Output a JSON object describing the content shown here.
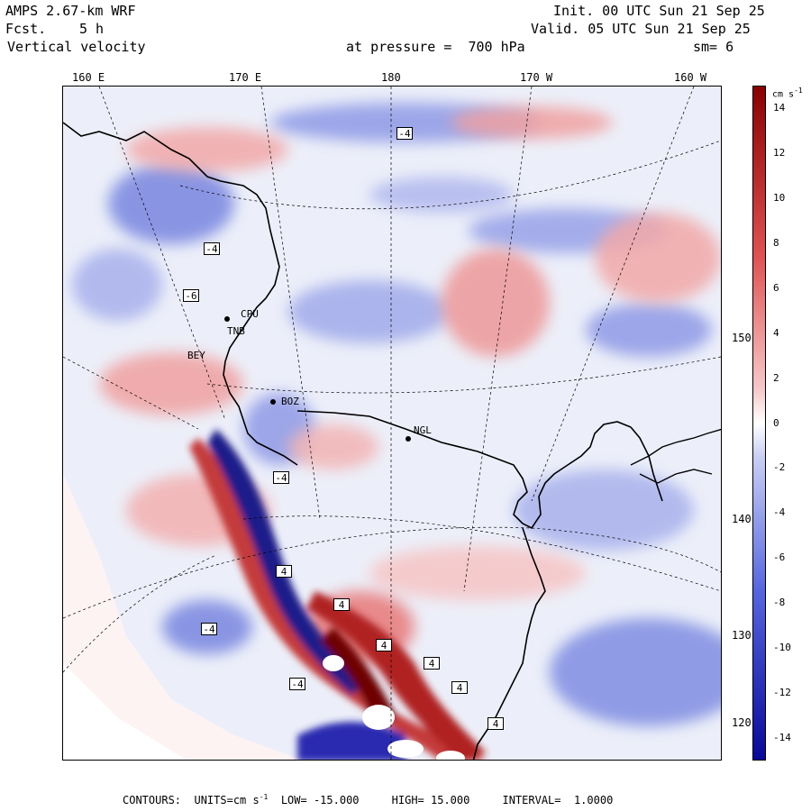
{
  "header": {
    "model": "AMPS 2.67-km WRF",
    "fcst_label": "Fcst.",
    "fcst_value": "5 h",
    "field": "Vertical velocity",
    "level_text": "at pressure =  700 hPa",
    "init": "Init. 00 UTC Sun 21 Sep 25",
    "valid": "Valid. 05 UTC Sun 21 Sep 25",
    "smoothing": "sm= 6"
  },
  "longitude_labels": [
    "160 E",
    "170 E",
    "180",
    "170 W",
    "160 W"
  ],
  "latitude_labels": [
    "150 W",
    "140 W",
    "130 W",
    "120 W"
  ],
  "colorbar": {
    "unit": "cm s",
    "unit_exp": "-1",
    "tick_labels": [
      "14",
      "12",
      "10",
      "8",
      "6",
      "4",
      "2",
      "0",
      "-2",
      "-4",
      "-6",
      "-8",
      "-10",
      "-12",
      "-14"
    ],
    "range": [
      -15,
      15
    ],
    "interval": 1,
    "colors": {
      "strong_negative": "#08089a",
      "negative": "#5565e0",
      "weak_negative": "#c8cff4",
      "zero": "#ffffff",
      "weak_positive": "#f7c8c8",
      "positive": "#e05050",
      "strong_positive": "#8a0000"
    }
  },
  "stations": [
    "CPU",
    "TNB",
    "BEY",
    "BOZ",
    "NGL"
  ],
  "contour_labels": [
    "-4",
    "-4",
    "-6",
    "-4",
    "-4",
    "4",
    "4",
    "4",
    "-4",
    "4",
    "4",
    "4"
  ],
  "footer": {
    "contours": "CONTOURS:",
    "units_prefix": "UNITS=cm s",
    "units_exp": "-1",
    "low": "LOW= -15.000",
    "high": "HIGH= 15.000",
    "interval": "INTERVAL=  1.0000"
  }
}
